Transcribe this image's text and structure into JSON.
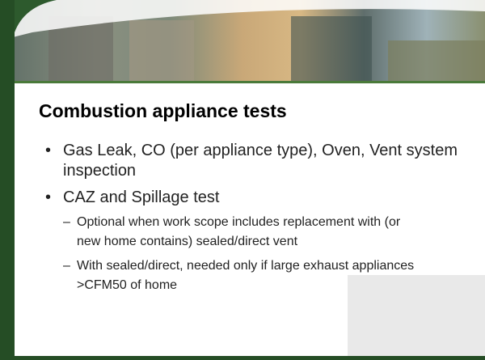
{
  "slide": {
    "title": "Combustion appliance tests",
    "bullets": [
      {
        "text": "Gas Leak, CO (per appliance type), Oven, Vent system inspection"
      },
      {
        "text": "CAZ and Spillage test",
        "sub": [
          "Optional when work scope includes replacement with (or new home contains) sealed/direct vent",
          "With sealed/direct, needed only if large exhaust appliances >CFM50 of home"
        ]
      }
    ]
  }
}
